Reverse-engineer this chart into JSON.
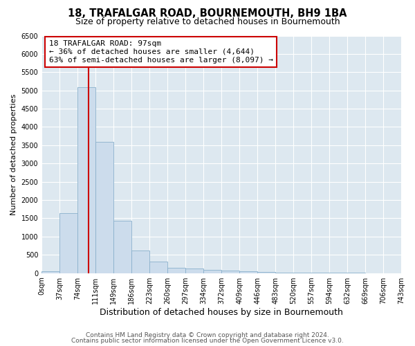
{
  "title": "18, TRAFALGAR ROAD, BOURNEMOUTH, BH9 1BA",
  "subtitle": "Size of property relative to detached houses in Bournemouth",
  "xlabel": "Distribution of detached houses by size in Bournemouth",
  "ylabel": "Number of detached properties",
  "bar_color": "#ccdcec",
  "bar_edge_color": "#8ab0cc",
  "bin_edges": [
    0,
    37,
    74,
    111,
    149,
    186,
    223,
    260,
    297,
    334,
    372,
    409,
    446,
    483,
    520,
    557,
    594,
    632,
    669,
    706,
    743
  ],
  "bin_labels": [
    "0sqm",
    "37sqm",
    "74sqm",
    "111sqm",
    "149sqm",
    "186sqm",
    "223sqm",
    "260sqm",
    "297sqm",
    "334sqm",
    "372sqm",
    "409sqm",
    "446sqm",
    "483sqm",
    "520sqm",
    "557sqm",
    "594sqm",
    "632sqm",
    "669sqm",
    "706sqm",
    "743sqm"
  ],
  "bar_heights": [
    55,
    1640,
    5080,
    3590,
    1430,
    620,
    305,
    150,
    120,
    95,
    70,
    45,
    30,
    18,
    10,
    5,
    3,
    2,
    1,
    1
  ],
  "property_size": 97,
  "property_line_color": "#cc0000",
  "annotation_line1": "18 TRAFALGAR ROAD: 97sqm",
  "annotation_line2": "← 36% of detached houses are smaller (4,644)",
  "annotation_line3": "63% of semi-detached houses are larger (8,097) →",
  "annotation_box_color": "#ffffff",
  "annotation_border_color": "#cc0000",
  "ylim": [
    0,
    6500
  ],
  "yticks": [
    0,
    500,
    1000,
    1500,
    2000,
    2500,
    3000,
    3500,
    4000,
    4500,
    5000,
    5500,
    6000,
    6500
  ],
  "footer_line1": "Contains HM Land Registry data © Crown copyright and database right 2024.",
  "footer_line2": "Contains public sector information licensed under the Open Government Licence v3.0.",
  "figure_bg_color": "#ffffff",
  "plot_bg_color": "#dde8f0",
  "grid_color": "#ffffff",
  "title_fontsize": 10.5,
  "subtitle_fontsize": 9,
  "xlabel_fontsize": 9,
  "ylabel_fontsize": 8,
  "tick_fontsize": 7,
  "annotation_fontsize": 8,
  "footer_fontsize": 6.5
}
